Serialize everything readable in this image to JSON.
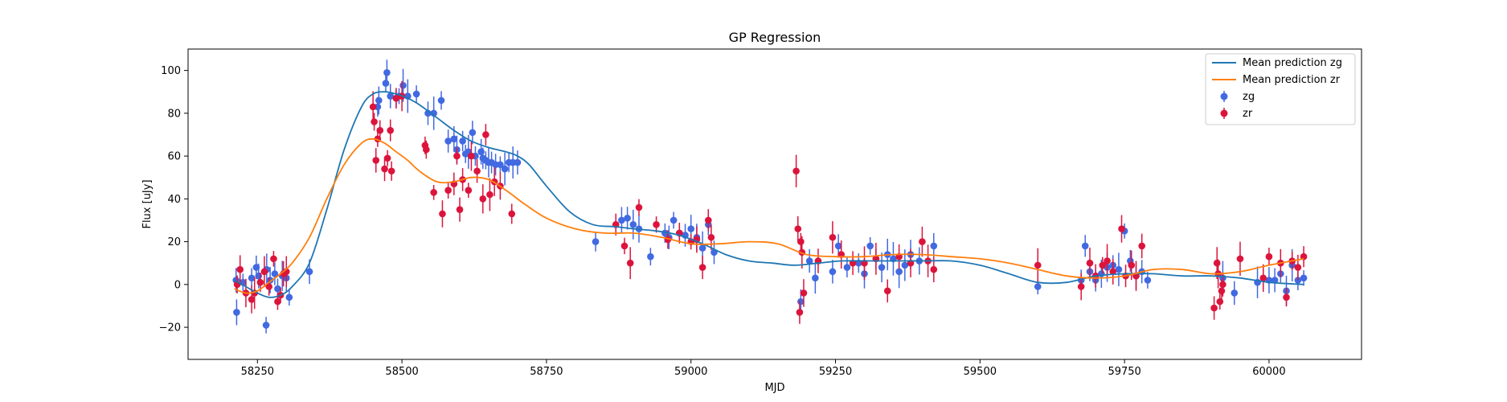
{
  "chart_data": {
    "type": "scatter",
    "title": "GP Regression",
    "xlabel": "MJD",
    "ylabel": "Flux [uJy]",
    "xlim": [
      58130,
      60160
    ],
    "ylim": [
      -35,
      110
    ],
    "xticks": [
      58250,
      58500,
      58750,
      59000,
      59250,
      59500,
      59750,
      60000
    ],
    "yticks": [
      -20,
      0,
      20,
      40,
      60,
      80,
      100
    ],
    "legend_position": "top-right",
    "legend": [
      "Mean prediction zg",
      "Mean prediction zr",
      "zg",
      "zr"
    ],
    "colors": {
      "zg_line": "#1f77b4",
      "zr_line": "#ff7f0e",
      "zg_points": "#4169e1",
      "zr_points": "#dc143c"
    },
    "lines": [
      {
        "name": "Mean prediction zg",
        "x": [
          58210,
          58230,
          58250,
          58270,
          58290,
          58310,
          58340,
          58370,
          58400,
          58430,
          58450,
          58470,
          58490,
          58510,
          58530,
          58560,
          58590,
          58620,
          58650,
          58680,
          58700,
          58720,
          58750,
          58790,
          58830,
          58870,
          58900,
          58940,
          58980,
          59020,
          59060,
          59100,
          59140,
          59180,
          59220,
          59260,
          59300,
          59350,
          59400,
          59450,
          59500,
          59550,
          59600,
          59650,
          59700,
          59750,
          59800,
          59850,
          59900,
          59950,
          60000,
          60060
        ],
        "y": [
          2,
          -1,
          -4,
          -6,
          -5,
          -1,
          10,
          35,
          63,
          83,
          89,
          90,
          89,
          87,
          84,
          78,
          72,
          67,
          64,
          62,
          60,
          56,
          46,
          34,
          28,
          27,
          26,
          25,
          23,
          19,
          14,
          11,
          10,
          9,
          10,
          11,
          11,
          11,
          11,
          11,
          9,
          5,
          1,
          1,
          4,
          5,
          5,
          4,
          4,
          3,
          1,
          0
        ]
      },
      {
        "name": "Mean prediction zr",
        "x": [
          58210,
          58230,
          58250,
          58270,
          58290,
          58310,
          58340,
          58370,
          58400,
          58430,
          58450,
          58470,
          58490,
          58510,
          58530,
          58560,
          58590,
          58620,
          58650,
          58680,
          58710,
          58750,
          58800,
          58850,
          58900,
          58950,
          59000,
          59050,
          59100,
          59150,
          59200,
          59250,
          59300,
          59350,
          59400,
          59450,
          59500,
          59550,
          59600,
          59650,
          59700,
          59750,
          59800,
          59850,
          59900,
          59950,
          60000,
          60060
        ],
        "y": [
          -2,
          -4,
          -3,
          1,
          5,
          10,
          22,
          40,
          56,
          66,
          68,
          66,
          62,
          58,
          53,
          48,
          48,
          50,
          49,
          44,
          38,
          31,
          26,
          24,
          24,
          22,
          19,
          19,
          20,
          19,
          14,
          13,
          13,
          14,
          14,
          13,
          12,
          10,
          7,
          4,
          3,
          4,
          7,
          7,
          5,
          6,
          9,
          12
        ]
      }
    ],
    "series": [
      {
        "name": "zg",
        "x": [
          58213,
          58214,
          58225,
          58240,
          58248,
          58252,
          58265,
          58266,
          58272,
          58280,
          58285,
          58293,
          58300,
          58305,
          58340,
          58458,
          58460,
          58472,
          58474,
          58480,
          58490,
          58495,
          58502,
          58510,
          58525,
          58545,
          58555,
          58568,
          58580,
          58590,
          58595,
          58605,
          58610,
          58615,
          58622,
          58627,
          58637,
          58640,
          58645,
          58650,
          58655,
          58662,
          58670,
          58678,
          58685,
          58692,
          58700,
          58835,
          58880,
          58890,
          58900,
          58910,
          58930,
          58955,
          58962,
          58970,
          58980,
          58990,
          59000,
          59010,
          59020,
          59030,
          59040,
          59190,
          59205,
          59215,
          59245,
          59255,
          59270,
          59290,
          59300,
          59310,
          59320,
          59330,
          59340,
          59350,
          59360,
          59370,
          59380,
          59395,
          59420,
          59600,
          59675,
          59682,
          59690,
          59700,
          59710,
          59720,
          59730,
          59740,
          59750,
          59760,
          59770,
          59780,
          59790,
          59920,
          59940,
          59980,
          60000,
          60010,
          60020,
          60030,
          60040,
          60050,
          60060
        ],
        "y": [
          2,
          -13,
          1,
          3,
          8,
          4,
          -19,
          7,
          2,
          5,
          -2,
          4,
          3,
          -6,
          6,
          83,
          86,
          94,
          99,
          88,
          87,
          88,
          93,
          88,
          89,
          80,
          80,
          86,
          67,
          68,
          63,
          67,
          61,
          62,
          71,
          60,
          62,
          59,
          58,
          57,
          57,
          56,
          56,
          54,
          57,
          57,
          57,
          20,
          30,
          31,
          28,
          26,
          13,
          24,
          22,
          30,
          24,
          23,
          26,
          22,
          17,
          28,
          15,
          -8,
          11,
          3,
          6,
          18,
          8,
          10,
          5,
          18,
          12,
          8,
          14,
          12,
          6,
          9,
          14,
          11,
          18,
          -1,
          2,
          18,
          6,
          2,
          5,
          8,
          9,
          7,
          25,
          11,
          4,
          6,
          2,
          3,
          -4,
          1,
          2,
          2,
          5,
          -3,
          9,
          2,
          3
        ]
      },
      {
        "name": "zr",
        "x": [
          58215,
          58220,
          58230,
          58240,
          58245,
          58255,
          58262,
          58270,
          58278,
          58285,
          58290,
          58295,
          58300,
          58450,
          58452,
          58455,
          58458,
          58462,
          58470,
          58475,
          58480,
          58482,
          58490,
          58500,
          58540,
          58542,
          58555,
          58570,
          58580,
          58590,
          58595,
          58600,
          58605,
          58615,
          58620,
          58630,
          58640,
          58645,
          58652,
          58660,
          58670,
          58690,
          58870,
          58885,
          58895,
          58910,
          58940,
          58960,
          58980,
          59000,
          59010,
          59020,
          59030,
          59035,
          59182,
          59185,
          59188,
          59190,
          59192,
          59195,
          59220,
          59245,
          59260,
          59280,
          59300,
          59320,
          59340,
          59360,
          59380,
          59400,
          59410,
          59420,
          59600,
          59675,
          59690,
          59700,
          59712,
          59720,
          59730,
          59745,
          59752,
          59762,
          59770,
          59780,
          59905,
          59910,
          59912,
          59915,
          59918,
          59920,
          59950,
          59990,
          60000,
          60020,
          60030,
          60040,
          60050,
          60060
        ],
        "y": [
          0,
          7,
          -4,
          -7,
          -4,
          1,
          6,
          -1,
          12,
          -8,
          -5,
          5,
          6,
          83,
          76,
          58,
          68,
          72,
          54,
          59,
          72,
          53,
          87,
          88,
          65,
          63,
          43,
          33,
          44,
          47,
          60,
          35,
          49,
          44,
          60,
          53,
          40,
          70,
          42,
          48,
          46,
          33,
          28,
          18,
          10,
          36,
          28,
          21,
          24,
          20,
          21,
          8,
          30,
          22,
          53,
          26,
          -13,
          20,
          15,
          -4,
          11,
          22,
          14,
          10,
          10,
          12,
          -3,
          13,
          10,
          20,
          11,
          7,
          9,
          -1,
          10,
          4,
          9,
          11,
          6,
          26,
          4,
          9,
          4,
          18,
          -11,
          10,
          5,
          -8,
          -3,
          0,
          12,
          3,
          13,
          10,
          -6,
          11,
          8,
          13
        ]
      }
    ]
  }
}
